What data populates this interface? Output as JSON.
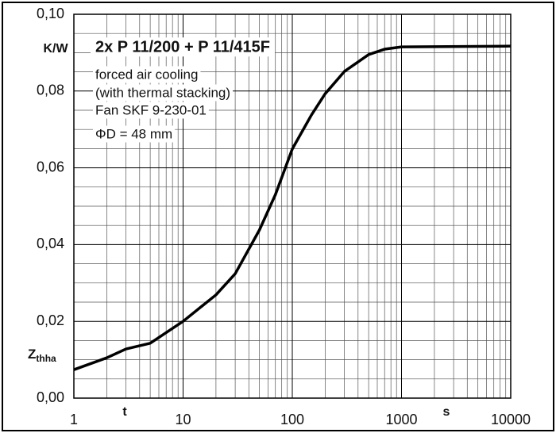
{
  "chart_data": {
    "type": "line",
    "title": "2x P 11/200 + P 11/415F",
    "annotations": [
      "forced air cooling",
      "(with thermal stacking)",
      "Fan SKF 9-230-01",
      "ΦD = 48 mm"
    ],
    "ylabel_unit": "K/W",
    "ylabel": "Z",
    "ylabel_sub": "thha",
    "xlabel": "t",
    "xlabel_unit": "s",
    "xscale": "log",
    "xlim": [
      1,
      10000
    ],
    "xticks": [
      1,
      10,
      100,
      1000,
      10000
    ],
    "ylim": [
      0,
      0.1
    ],
    "yticks": [
      {
        "value": 0,
        "label": "0,00"
      },
      {
        "value": 0.02,
        "label": "0,02"
      },
      {
        "value": 0.04,
        "label": "0,04"
      },
      {
        "value": 0.06,
        "label": "0,06"
      },
      {
        "value": 0.08,
        "label": "0,08"
      },
      {
        "value": 0.1,
        "label": "0,10"
      }
    ],
    "grid": true,
    "x": [
      1,
      2,
      3,
      5,
      10,
      20,
      30,
      50,
      70,
      100,
      150,
      200,
      300,
      500,
      700,
      1000,
      10000
    ],
    "series": [
      {
        "color": "#000000",
        "values": [
          0.0074,
          0.0105,
          0.0128,
          0.0143,
          0.02,
          0.0269,
          0.0324,
          0.0438,
          0.053,
          0.0649,
          0.0738,
          0.0793,
          0.0851,
          0.0895,
          0.0909,
          0.0915,
          0.0917
        ]
      }
    ]
  }
}
